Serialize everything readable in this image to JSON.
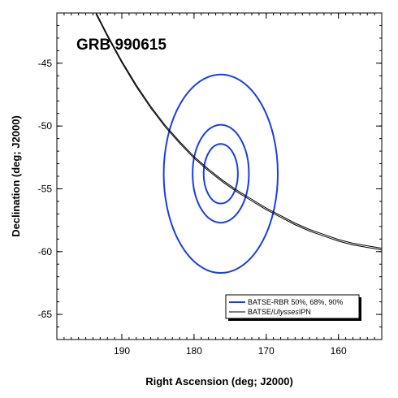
{
  "chart_data": {
    "type": "line",
    "title": "GRB 990615",
    "xlabel": "Right Ascension (deg; J2000)",
    "ylabel": "Declination (deg; J2000)",
    "xlim": [
      199,
      154
    ],
    "ylim": [
      -67,
      -41
    ],
    "x_axis_reversed": true,
    "x_ticks": [
      190,
      180,
      170,
      160
    ],
    "x_tick_labels": [
      "190",
      "180",
      "170",
      "160"
    ],
    "y_ticks": [
      -45,
      -50,
      -55,
      -60,
      -65
    ],
    "y_tick_labels": [
      "-45",
      "-50",
      "-55",
      "-60",
      "-65"
    ],
    "grid": false,
    "legend_position": "bottom-right",
    "colors": {
      "contour": "#1a3ee6",
      "arc": "#000000"
    },
    "series": [
      {
        "name": "BATSE-RBR 50%, 68%, 90%",
        "type": "contours",
        "center": [
          176.3,
          -53.8
        ],
        "radii_x": [
          2.37,
          3.9,
          7.9
        ],
        "radii_y": [
          2.37,
          3.9,
          7.9
        ],
        "color": "#1a3ee6"
      },
      {
        "name": "BATSE/Ulysses IPN",
        "type": "arc",
        "x": [
          193.6,
          192.0,
          190.0,
          188.0,
          186.0,
          184.0,
          182.0,
          180.0,
          178.0,
          176.0,
          174.0,
          172.0,
          170.0,
          168.0,
          166.0,
          164.0,
          162.0,
          160.0,
          158.0,
          156.0,
          154.0
        ],
        "y": [
          -41.0,
          -42.8,
          -44.9,
          -46.8,
          -48.5,
          -50.0,
          -51.3,
          -52.5,
          -53.5,
          -54.4,
          -55.2,
          -55.9,
          -56.6,
          -57.2,
          -57.8,
          -58.3,
          -58.7,
          -59.1,
          -59.4,
          -59.6,
          -59.8
        ],
        "color": "#000000"
      }
    ],
    "legend": [
      {
        "label": "BATSE-RBR 50%, 68%, 90%",
        "color": "#1a3ee6"
      },
      {
        "label_pre": "BATSE/",
        "label_italic": "Ulysses",
        "label_post": "IPN",
        "color": "#000000"
      }
    ]
  }
}
